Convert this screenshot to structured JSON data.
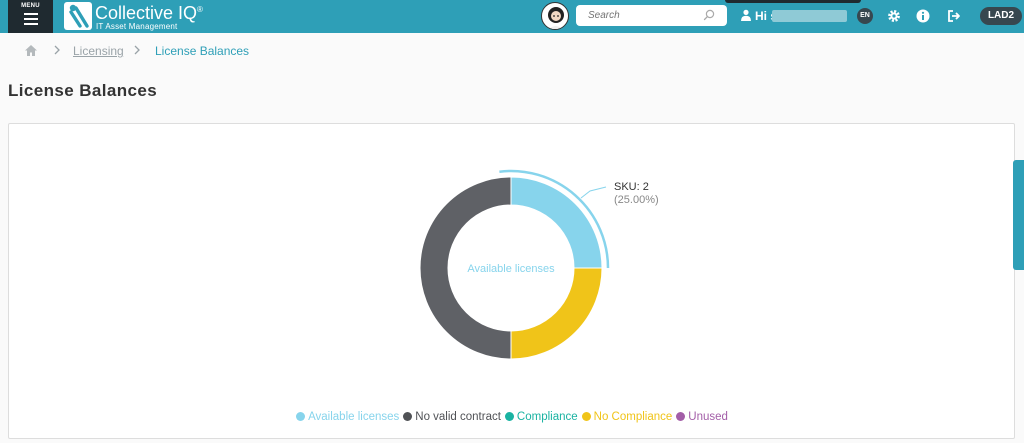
{
  "header": {
    "menu_label": "MENU",
    "logo_title": "Collective IQ",
    "logo_reg": "®",
    "logo_subtitle": "IT Asset Management",
    "search_placeholder": "Search",
    "greeting": "Hi s",
    "language": "EN",
    "workspace": "LAD2",
    "icons": [
      "menu-icon",
      "avatar",
      "search-icon",
      "user-icon",
      "gear-icon",
      "info-icon",
      "logout-icon"
    ]
  },
  "breadcrumb": {
    "home_icon": "home-icon",
    "items": [
      "Licensing",
      "License Balances"
    ]
  },
  "page": {
    "title": "License Balances"
  },
  "chart_data": {
    "type": "pie",
    "center_label": "Available licenses",
    "slices": [
      {
        "name": "Available licenses",
        "value": 25,
        "color": "#87d4ec"
      },
      {
        "name": "No Compliance",
        "value": 25,
        "color": "#f0c419"
      },
      {
        "name": "No valid contract",
        "value": 50,
        "color": "#5f6166"
      }
    ],
    "tooltip": {
      "line1": "SKU: 2",
      "line2": "(25.00%)"
    },
    "legend": [
      {
        "name": "Available licenses",
        "color": "#87d4ec"
      },
      {
        "name": "No valid contract",
        "color": "#505256"
      },
      {
        "name": "Compliance",
        "color": "#1ab3a2"
      },
      {
        "name": "No Compliance",
        "color": "#f0c419"
      },
      {
        "name": "Unused",
        "color": "#a35ea8"
      }
    ]
  }
}
